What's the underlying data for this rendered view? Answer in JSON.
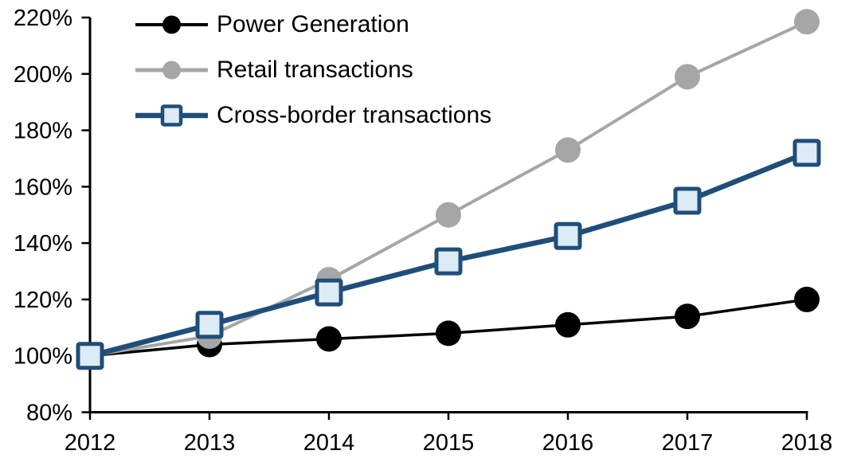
{
  "chart_data": {
    "type": "line",
    "title": "",
    "xlabel": "",
    "ylabel": "",
    "grid": false,
    "legend_position": "top-left",
    "x": [
      "2012",
      "2013",
      "2014",
      "2015",
      "2016",
      "2017",
      "2018"
    ],
    "series": [
      {
        "name": "Power Generation",
        "marker": "circle",
        "color": "#000000",
        "marker_fill": "#000000",
        "values": [
          100,
          104,
          106,
          108,
          111,
          114,
          120
        ]
      },
      {
        "name": "Retail transactions",
        "marker": "circle",
        "color": "#A6A6A6",
        "marker_fill": "#A6A6A6",
        "values": [
          100,
          107,
          127,
          150,
          173,
          199,
          218.5
        ]
      },
      {
        "name": "Cross-border transactions",
        "marker": "square",
        "color": "#1F4E79",
        "marker_fill": "#DDEBF7",
        "values": [
          100,
          111,
          122.5,
          133.5,
          142.5,
          155,
          172
        ]
      }
    ],
    "y_axis": {
      "min": 80,
      "max": 220,
      "tick_step": 20,
      "tick_labels": [
        "80%",
        "100%",
        "120%",
        "140%",
        "160%",
        "180%",
        "200%",
        "220%"
      ]
    },
    "x_axis": {
      "tick_labels": [
        "2012",
        "2013",
        "2014",
        "2015",
        "2016",
        "2017",
        "2018"
      ]
    }
  }
}
